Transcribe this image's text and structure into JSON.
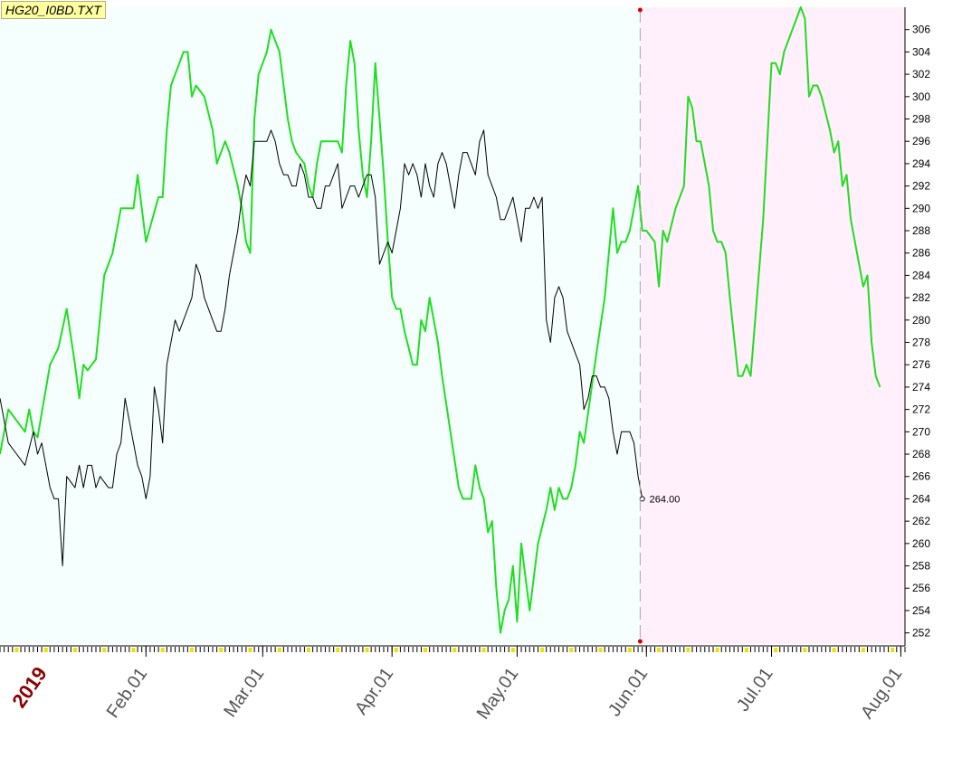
{
  "file_label": "HG20_I0BD.TXT",
  "colors": {
    "history_bg": "#f5fffd",
    "forecast_bg": "#fff0fb",
    "forecast_line": "#22dd22",
    "price_line": "#000000",
    "divider": "#aaaaaa",
    "marker": "#dd0000",
    "tick_yellow": "#f0e000"
  },
  "chart_data": {
    "type": "line",
    "title": "",
    "xlabel": "",
    "ylabel": "",
    "ylim": [
      251,
      308
    ],
    "yticks": [
      252,
      254,
      256,
      258,
      260,
      262,
      264,
      266,
      268,
      270,
      272,
      274,
      276,
      278,
      280,
      282,
      284,
      286,
      288,
      290,
      292,
      294,
      296,
      298,
      300,
      302,
      304,
      306
    ],
    "year_label": "2019",
    "xtick_labels": [
      {
        "label": "Feb.01",
        "t": 31
      },
      {
        "label": "Mar.01",
        "t": 59
      },
      {
        "label": "Apr.01",
        "t": 90
      },
      {
        "label": "May.01",
        "t": 120
      },
      {
        "label": "Jun.01",
        "t": 151
      },
      {
        "label": "Jul.01",
        "t": 181
      },
      {
        "label": "Aug.01",
        "t": 212
      }
    ],
    "year_t": 7,
    "x_range": [
      -4,
      213
    ],
    "divider_t": 149.5,
    "last_value_label": "264.00",
    "series": [
      {
        "key": "forecast",
        "points": [
          [
            -4,
            268
          ],
          [
            -2,
            272
          ],
          [
            0,
            271
          ],
          [
            2,
            270
          ],
          [
            3,
            272
          ],
          [
            4,
            270
          ],
          [
            5,
            269.5
          ],
          [
            8,
            276
          ],
          [
            10,
            277.5
          ],
          [
            12,
            281
          ],
          [
            14,
            276
          ],
          [
            15,
            273
          ],
          [
            16,
            276
          ],
          [
            17,
            275.5
          ],
          [
            18,
            276
          ],
          [
            19,
            276.5
          ],
          [
            21,
            284
          ],
          [
            23,
            286
          ],
          [
            25,
            290
          ],
          [
            28,
            290
          ],
          [
            29,
            293
          ],
          [
            31,
            287
          ],
          [
            34,
            291
          ],
          [
            35,
            291
          ],
          [
            36,
            297
          ],
          [
            37,
            301
          ],
          [
            39,
            303
          ],
          [
            40,
            304
          ],
          [
            41,
            304
          ],
          [
            42,
            300
          ],
          [
            43,
            301
          ],
          [
            45,
            300
          ],
          [
            47,
            297
          ],
          [
            48,
            294
          ],
          [
            50,
            296
          ],
          [
            51,
            295
          ],
          [
            53,
            292
          ],
          [
            54,
            290
          ],
          [
            55,
            287
          ],
          [
            56,
            286
          ],
          [
            57,
            298
          ],
          [
            58,
            302
          ],
          [
            59,
            303
          ],
          [
            60,
            304
          ],
          [
            61,
            306
          ],
          [
            62,
            305
          ],
          [
            63,
            304
          ],
          [
            64,
            301
          ],
          [
            65,
            298
          ],
          [
            66,
            296
          ],
          [
            67,
            295
          ],
          [
            69,
            294
          ],
          [
            70,
            292
          ],
          [
            71,
            291
          ],
          [
            72,
            294
          ],
          [
            73,
            296
          ],
          [
            75,
            296
          ],
          [
            77,
            296
          ],
          [
            78,
            295
          ],
          [
            79,
            301
          ],
          [
            80,
            305
          ],
          [
            81,
            303
          ],
          [
            82,
            297
          ],
          [
            83,
            293
          ],
          [
            84,
            291
          ],
          [
            85,
            296
          ],
          [
            86,
            303
          ],
          [
            87,
            298
          ],
          [
            88,
            293
          ],
          [
            89,
            287
          ],
          [
            90,
            282
          ],
          [
            91,
            281
          ],
          [
            92,
            281
          ],
          [
            93,
            279
          ],
          [
            95,
            276
          ],
          [
            96,
            276
          ],
          [
            97,
            280
          ],
          [
            98,
            279
          ],
          [
            99,
            282
          ],
          [
            100,
            280
          ],
          [
            101,
            278
          ],
          [
            102,
            275
          ],
          [
            104,
            270
          ],
          [
            106,
            265
          ],
          [
            107,
            264
          ],
          [
            109,
            264
          ],
          [
            110,
            267
          ],
          [
            111,
            265
          ],
          [
            112,
            264
          ],
          [
            113,
            261
          ],
          [
            114,
            262
          ],
          [
            115,
            256
          ],
          [
            116,
            252
          ],
          [
            117,
            254
          ],
          [
            118,
            255
          ],
          [
            119,
            258
          ],
          [
            120,
            253
          ],
          [
            121,
            260
          ],
          [
            122,
            257
          ],
          [
            123,
            254
          ],
          [
            124,
            257
          ],
          [
            125,
            260
          ],
          [
            127,
            263
          ],
          [
            128,
            265
          ],
          [
            129,
            263
          ],
          [
            130,
            265
          ],
          [
            131,
            264
          ],
          [
            132,
            264
          ],
          [
            133,
            265
          ],
          [
            134,
            267
          ],
          [
            135,
            270
          ],
          [
            136,
            269
          ],
          [
            139,
            277
          ],
          [
            141,
            282
          ],
          [
            143,
            290
          ],
          [
            144,
            286
          ],
          [
            145,
            287
          ],
          [
            146,
            287
          ],
          [
            147,
            288
          ],
          [
            148,
            290
          ],
          [
            149,
            292
          ],
          [
            150,
            288
          ],
          [
            151,
            288
          ],
          [
            153,
            287
          ],
          [
            154,
            283
          ],
          [
            155,
            288
          ],
          [
            156,
            287
          ],
          [
            158,
            290
          ],
          [
            160,
            292
          ],
          [
            161,
            300
          ],
          [
            162,
            299
          ],
          [
            163,
            296
          ],
          [
            164,
            296
          ],
          [
            166,
            292
          ],
          [
            167,
            288
          ],
          [
            168,
            287
          ],
          [
            169,
            287
          ],
          [
            170,
            286
          ],
          [
            171,
            282
          ],
          [
            173,
            275
          ],
          [
            174,
            275
          ],
          [
            175,
            276
          ],
          [
            176,
            275
          ],
          [
            179,
            289
          ],
          [
            181,
            303
          ],
          [
            182,
            303
          ],
          [
            183,
            302
          ],
          [
            184,
            304
          ],
          [
            186,
            306
          ],
          [
            188,
            308
          ],
          [
            189,
            307
          ],
          [
            190,
            300
          ],
          [
            191,
            301
          ],
          [
            192,
            301
          ],
          [
            193,
            300
          ],
          [
            195,
            297
          ],
          [
            196,
            295
          ],
          [
            197,
            296
          ],
          [
            198,
            292
          ],
          [
            199,
            293
          ],
          [
            200,
            289
          ],
          [
            202,
            285
          ],
          [
            203,
            283
          ],
          [
            204,
            284
          ],
          [
            205,
            278
          ],
          [
            206,
            275
          ],
          [
            207,
            274
          ]
        ]
      },
      {
        "key": "price",
        "points": [
          [
            -4,
            273
          ],
          [
            -2,
            269
          ],
          [
            0,
            268
          ],
          [
            2,
            267
          ],
          [
            4,
            270
          ],
          [
            5,
            268
          ],
          [
            6,
            269
          ],
          [
            8,
            265
          ],
          [
            9,
            264
          ],
          [
            10,
            264
          ],
          [
            11,
            258
          ],
          [
            12,
            266
          ],
          [
            14,
            265
          ],
          [
            15,
            267
          ],
          [
            16,
            265
          ],
          [
            17,
            267
          ],
          [
            18,
            267
          ],
          [
            19,
            265
          ],
          [
            20,
            266
          ],
          [
            22,
            265
          ],
          [
            23,
            265
          ],
          [
            24,
            268
          ],
          [
            25,
            269
          ],
          [
            26,
            273
          ],
          [
            28,
            269
          ],
          [
            29,
            267
          ],
          [
            30,
            266
          ],
          [
            31,
            264
          ],
          [
            32,
            266
          ],
          [
            33,
            274
          ],
          [
            34,
            272
          ],
          [
            35,
            269
          ],
          [
            36,
            276
          ],
          [
            38,
            280
          ],
          [
            39,
            279
          ],
          [
            41,
            281
          ],
          [
            42,
            282
          ],
          [
            43,
            285
          ],
          [
            44,
            284
          ],
          [
            45,
            282
          ],
          [
            47,
            280
          ],
          [
            48,
            279
          ],
          [
            49,
            279
          ],
          [
            50,
            281
          ],
          [
            51,
            284
          ],
          [
            53,
            288
          ],
          [
            54,
            291
          ],
          [
            55,
            293
          ],
          [
            56,
            292
          ],
          [
            57,
            296
          ],
          [
            59,
            296
          ],
          [
            60,
            296
          ],
          [
            61,
            297
          ],
          [
            62,
            296
          ],
          [
            63,
            294
          ],
          [
            64,
            293
          ],
          [
            65,
            293
          ],
          [
            66,
            292
          ],
          [
            67,
            292
          ],
          [
            68,
            294
          ],
          [
            69,
            293
          ],
          [
            70,
            291
          ],
          [
            71,
            291
          ],
          [
            72,
            290
          ],
          [
            73,
            290
          ],
          [
            74,
            292
          ],
          [
            75,
            292
          ],
          [
            76,
            293
          ],
          [
            77,
            294
          ],
          [
            78,
            290
          ],
          [
            79,
            291
          ],
          [
            80,
            292
          ],
          [
            81,
            292
          ],
          [
            82,
            291
          ],
          [
            83,
            292
          ],
          [
            84,
            293
          ],
          [
            85,
            293
          ],
          [
            86,
            291
          ],
          [
            87,
            285
          ],
          [
            88,
            286
          ],
          [
            89,
            287
          ],
          [
            90,
            286
          ],
          [
            91,
            288
          ],
          [
            92,
            290
          ],
          [
            93,
            294
          ],
          [
            94,
            293
          ],
          [
            95,
            294
          ],
          [
            96,
            293
          ],
          [
            97,
            291
          ],
          [
            98,
            294
          ],
          [
            99,
            292
          ],
          [
            100,
            291
          ],
          [
            101,
            294
          ],
          [
            102,
            295
          ],
          [
            103,
            294
          ],
          [
            104,
            292
          ],
          [
            105,
            290
          ],
          [
            106,
            293
          ],
          [
            107,
            295
          ],
          [
            108,
            295
          ],
          [
            109,
            294
          ],
          [
            110,
            293
          ],
          [
            111,
            296
          ],
          [
            112,
            297
          ],
          [
            113,
            293
          ],
          [
            114,
            292
          ],
          [
            115,
            291
          ],
          [
            116,
            289
          ],
          [
            117,
            289
          ],
          [
            118,
            290
          ],
          [
            119,
            291
          ],
          [
            120,
            289
          ],
          [
            121,
            287
          ],
          [
            122,
            290
          ],
          [
            123,
            290
          ],
          [
            124,
            291
          ],
          [
            125,
            290
          ],
          [
            126,
            291
          ],
          [
            127,
            280
          ],
          [
            128,
            278
          ],
          [
            129,
            282
          ],
          [
            130,
            283
          ],
          [
            131,
            282
          ],
          [
            132,
            279
          ],
          [
            133,
            278
          ],
          [
            134,
            277
          ],
          [
            135,
            276
          ],
          [
            136,
            272
          ],
          [
            137,
            273
          ],
          [
            138,
            275
          ],
          [
            139,
            275
          ],
          [
            140,
            274
          ],
          [
            141,
            274
          ],
          [
            142,
            273
          ],
          [
            143,
            270
          ],
          [
            144,
            268
          ],
          [
            145,
            270
          ],
          [
            146,
            270
          ],
          [
            147,
            270
          ],
          [
            148,
            269
          ],
          [
            149,
            266
          ],
          [
            150,
            264
          ]
        ]
      }
    ]
  }
}
